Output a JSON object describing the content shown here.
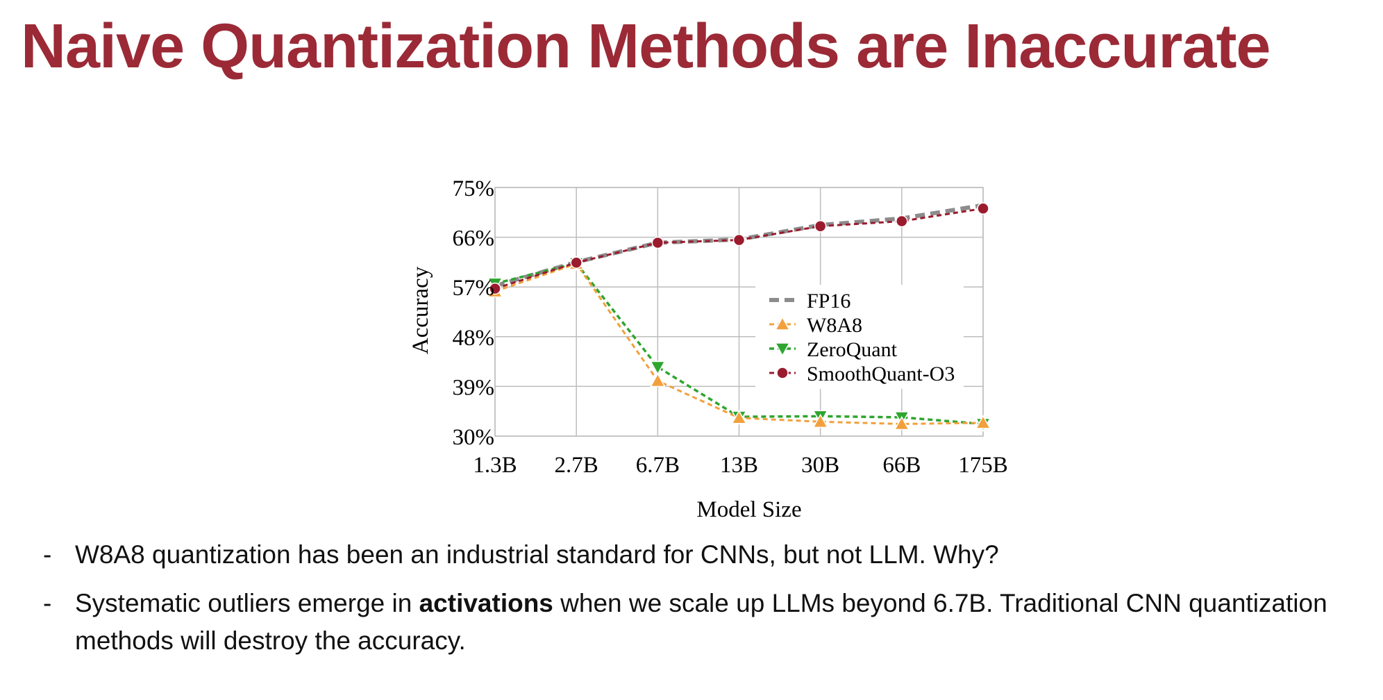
{
  "slide": {
    "title": "Naive Quantization Methods are Inaccurate"
  },
  "colors": {
    "title": "#9b2a36",
    "grid": "#bdbdbd",
    "fp16": "#8c8c8c",
    "w8a8": "#f2a03d",
    "zeroquant": "#2ea52e",
    "smoothquant": "#9b1b2e"
  },
  "chart_data": {
    "type": "line",
    "categories": [
      "1.3B",
      "2.7B",
      "6.7B",
      "13B",
      "30B",
      "66B",
      "175B"
    ],
    "xlabel": "Model Size",
    "ylabel": "Accuracy",
    "ylim": [
      30,
      75
    ],
    "yticks": [
      "30%",
      "39%",
      "48%",
      "57%",
      "66%",
      "75%"
    ],
    "grid": true,
    "legend_position": "center-right",
    "series": [
      {
        "name": "FP16",
        "marker": "none",
        "values": [
          57.2,
          61.5,
          65.0,
          65.6,
          68.2,
          69.4,
          71.8
        ]
      },
      {
        "name": "W8A8",
        "marker": "triangle-up",
        "values": [
          56.2,
          61.2,
          40.0,
          33.3,
          32.6,
          32.2,
          32.4
        ]
      },
      {
        "name": "ZeroQuant",
        "marker": "triangle-down",
        "values": [
          57.6,
          61.3,
          42.5,
          33.5,
          33.6,
          33.4,
          32.2
        ]
      },
      {
        "name": "SmoothQuant-O3",
        "marker": "circle",
        "values": [
          56.7,
          61.4,
          65.0,
          65.5,
          68.0,
          68.9,
          71.2
        ]
      }
    ]
  },
  "bullets": [
    {
      "dash": "-",
      "parts": [
        {
          "text": "W8A8 quantization has been an industrial standard for CNNs, but not LLM. Why?",
          "bold": false
        }
      ]
    },
    {
      "dash": "-",
      "parts": [
        {
          "text": "Systematic outliers emerge in ",
          "bold": false
        },
        {
          "text": "activations",
          "bold": true
        },
        {
          "text": " when we scale up LLMs beyond 6.7B. Traditional CNN quantization methods will destroy the accuracy.",
          "bold": false
        }
      ]
    }
  ]
}
